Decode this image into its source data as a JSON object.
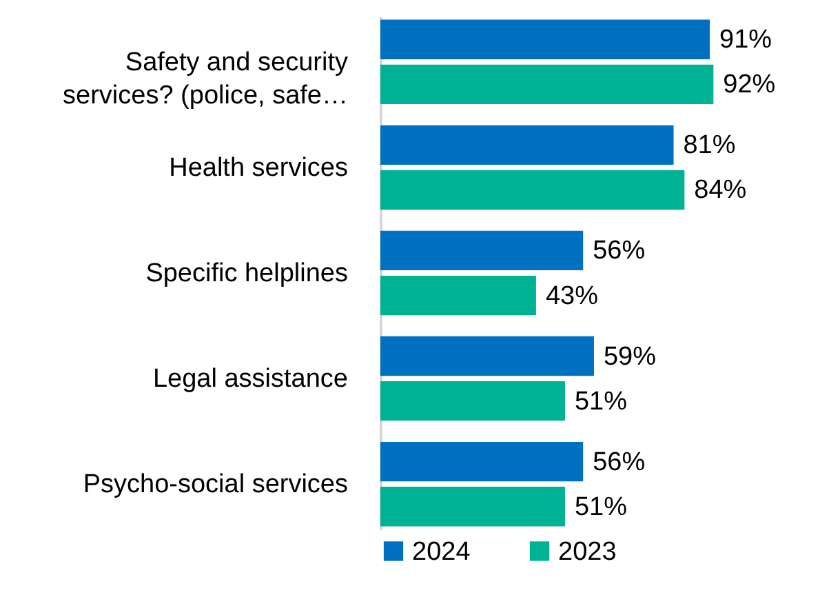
{
  "chart_data": {
    "type": "bar",
    "orientation": "horizontal",
    "categories": [
      "Safety and security services? (police, safe…",
      "Health services",
      "Specific helplines",
      "Legal assistance",
      "Psycho-social services"
    ],
    "series": [
      {
        "name": "2024",
        "color": "#0070c0",
        "values": [
          91,
          81,
          56,
          59,
          56
        ],
        "value_labels": [
          "91%",
          "81%",
          "56%",
          "59%",
          "56%"
        ]
      },
      {
        "name": "2023",
        "color": "#00b294",
        "values": [
          92,
          84,
          43,
          51,
          51
        ],
        "value_labels": [
          "92%",
          "84%",
          "43%",
          "51%",
          "51%"
        ]
      }
    ],
    "legend": "bottom"
  }
}
